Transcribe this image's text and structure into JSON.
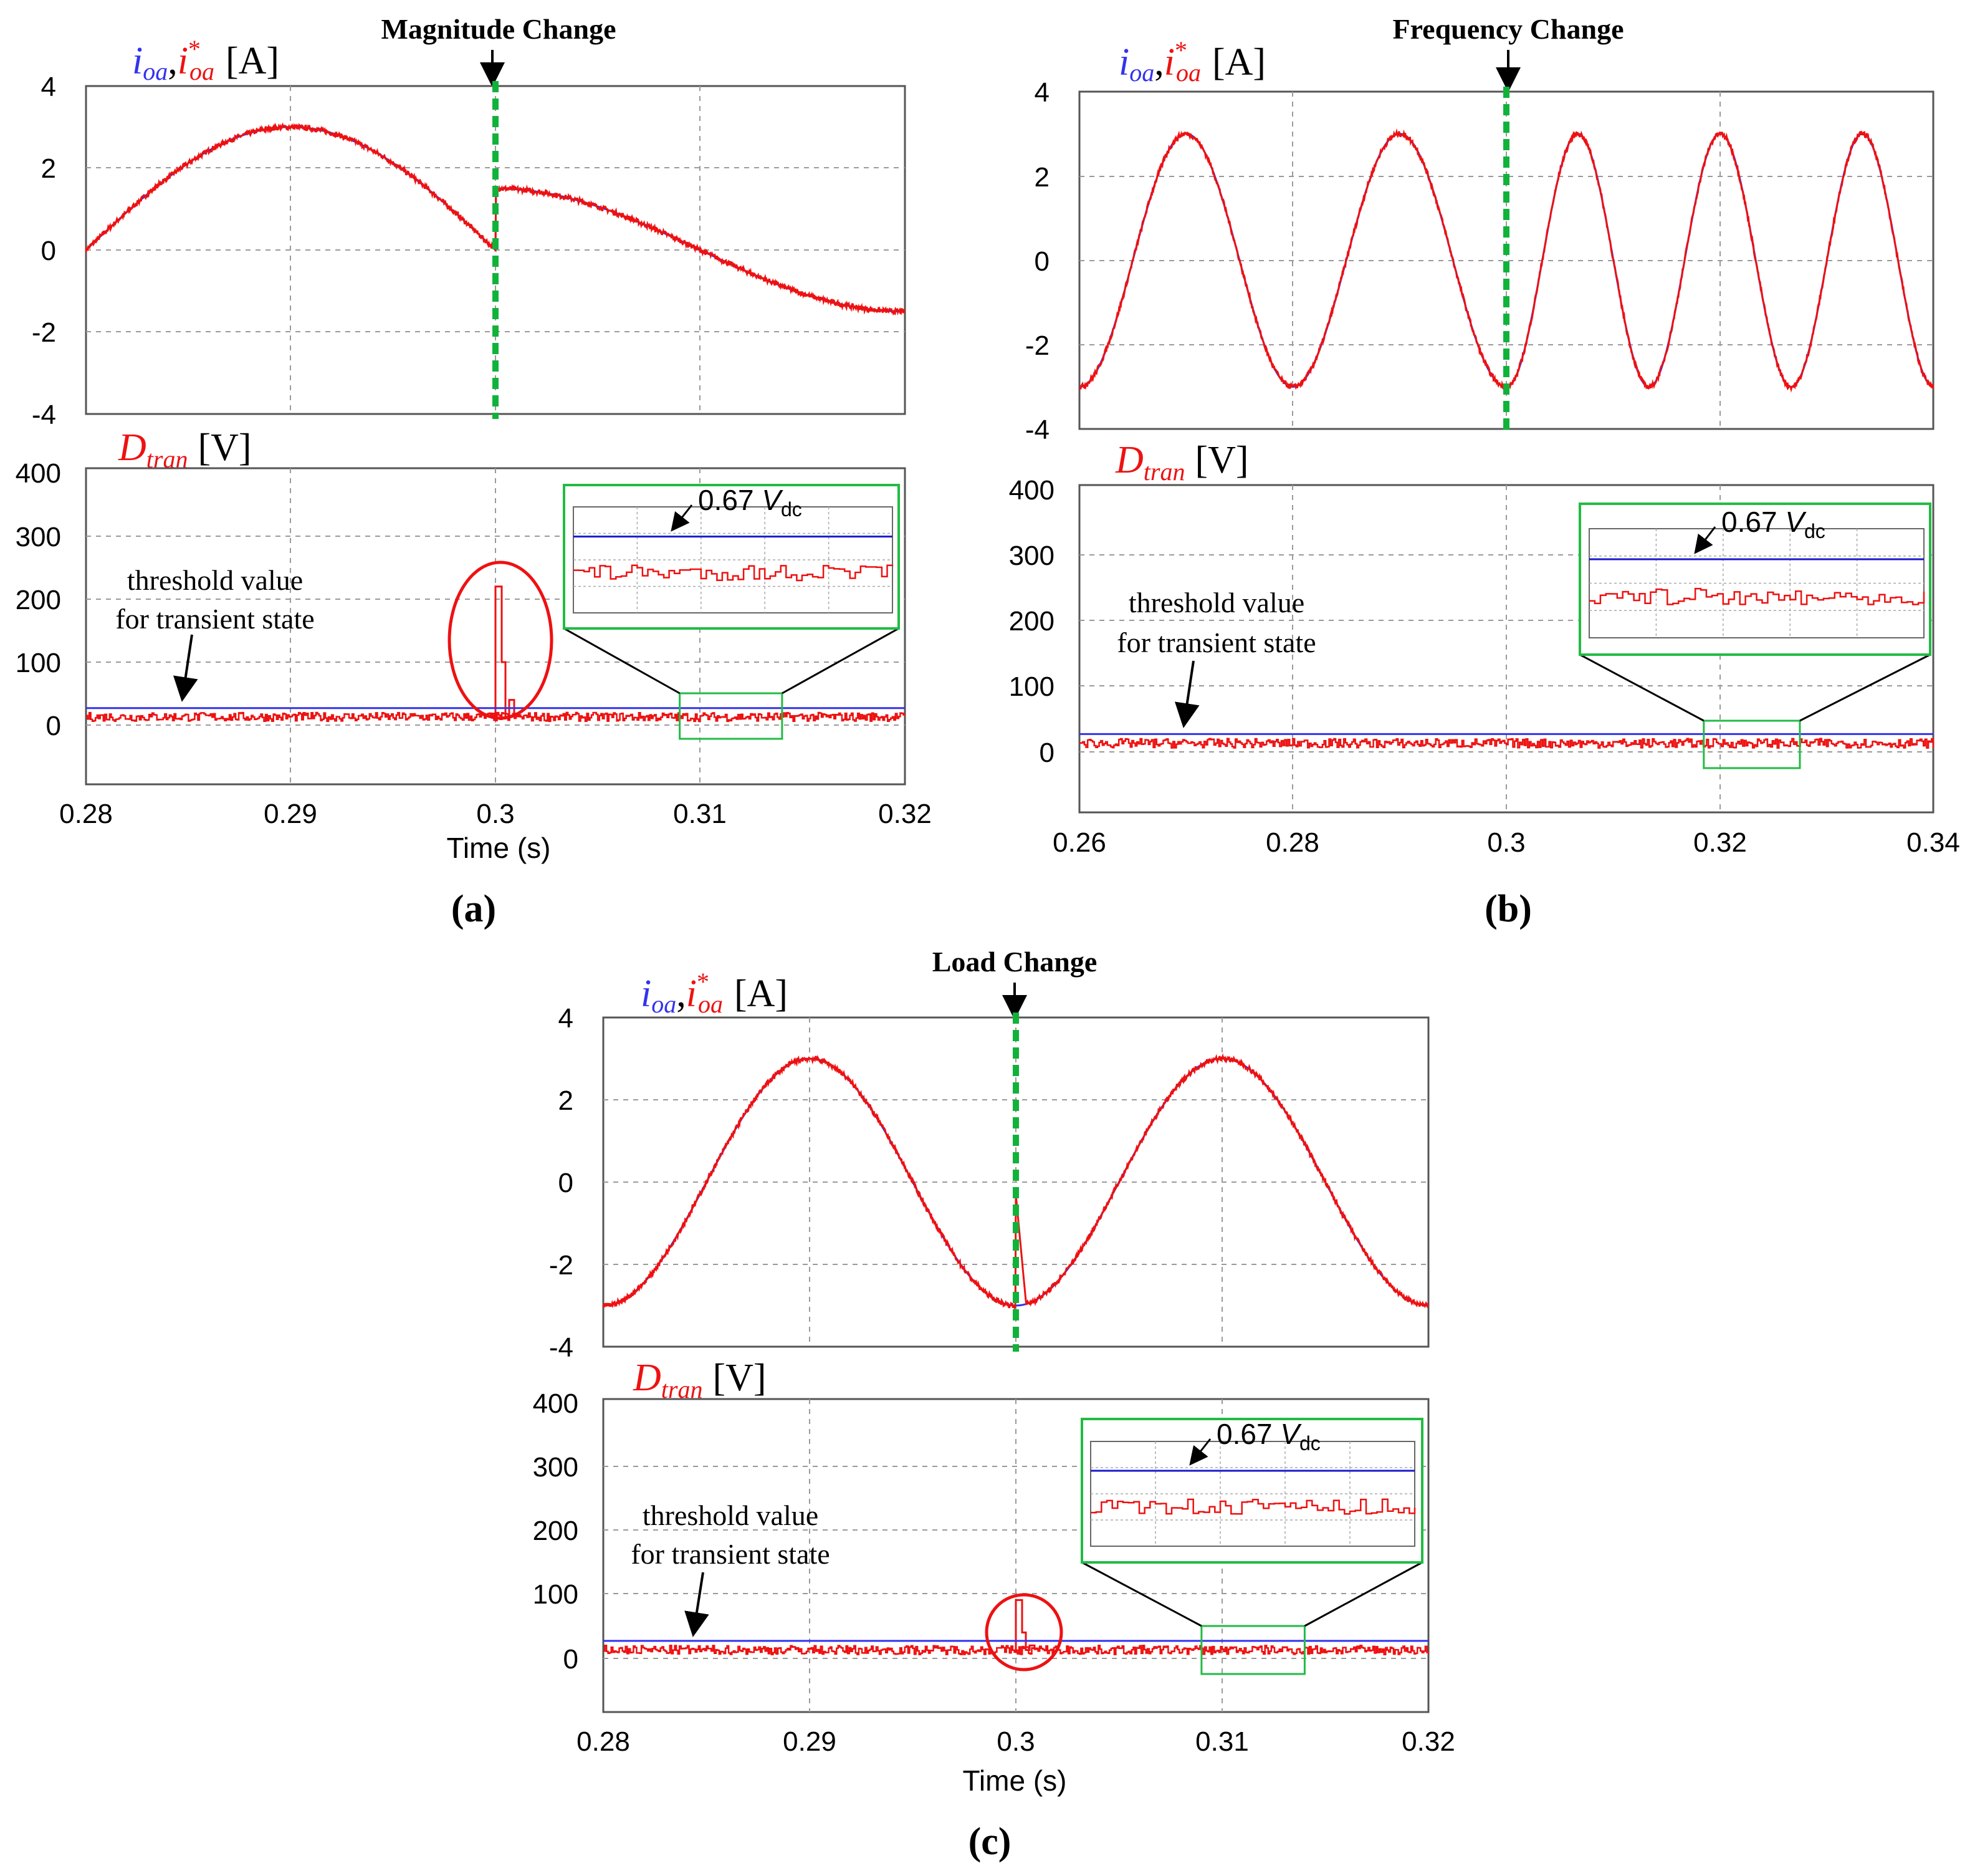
{
  "colors": {
    "measured": "#3333ee",
    "reference": "#ee1111",
    "marker": "#11b23a",
    "grid": "#9a9a9a",
    "frame": "#555555",
    "zoom_box": "#22bb44",
    "circle": "#ee1111"
  },
  "panels": [
    {
      "label": "(a)",
      "event": "Magnitude Change",
      "current_label": {
        "sym1": "i",
        "sub1": "oa",
        "sep": ",",
        "sym2": "i",
        "sub2": "oa",
        "sup2": "*",
        "unit": "[A]"
      },
      "dtran_label": {
        "sym": "D",
        "sub": "tran",
        "unit": "[V]"
      },
      "annotation": {
        "line1": "threshold value",
        "line2": "for transient state"
      },
      "inset_label": {
        "text": "0.67 ",
        "sym": "V",
        "sub": "dc"
      },
      "xlabel": "Time (s)",
      "xticks": [
        "0.28",
        "0.29",
        "0.3",
        "0.31",
        "0.32"
      ],
      "yticks_current": [
        "4",
        "2",
        "0",
        "-2",
        "-4"
      ],
      "yticks_dtran": [
        "400",
        "300",
        "200",
        "100",
        "0"
      ]
    },
    {
      "label": "(b)",
      "event": "Frequency Change",
      "current_label": {
        "sym1": "i",
        "sub1": "oa",
        "sep": ",",
        "sym2": "i",
        "sub2": "oa",
        "sup2": "*",
        "unit": "[A]"
      },
      "dtran_label": {
        "sym": "D",
        "sub": "tran",
        "unit": "[V]"
      },
      "annotation": {
        "line1": "threshold value",
        "line2": "for transient state"
      },
      "inset_label": {
        "text": "0.67 ",
        "sym": "V",
        "sub": "dc"
      },
      "xlabel": "",
      "xticks": [
        "0.26",
        "0.28",
        "0.3",
        "0.32",
        "0.34"
      ],
      "yticks_current": [
        "4",
        "2",
        "0",
        "-2",
        "-4"
      ],
      "yticks_dtran": [
        "400",
        "300",
        "200",
        "100",
        "0"
      ]
    },
    {
      "label": "(c)",
      "event": "Load Change",
      "current_label": {
        "sym1": "i",
        "sub1": "oa",
        "sep": ",",
        "sym2": "i",
        "sub2": "oa",
        "sup2": "*",
        "unit": "[A]"
      },
      "dtran_label": {
        "sym": "D",
        "sub": "tran",
        "unit": "[V]"
      },
      "annotation": {
        "line1": "threshold value",
        "line2": "for transient state"
      },
      "inset_label": {
        "text": "0.67 ",
        "sym": "V",
        "sub": "dc"
      },
      "xlabel": "Time (s)",
      "xticks": [
        "0.28",
        "0.29",
        "0.3",
        "0.31",
        "0.32"
      ],
      "yticks_current": [
        "4",
        "2",
        "0",
        "-2",
        "-4"
      ],
      "yticks_dtran": [
        "400",
        "300",
        "200",
        "100",
        "0"
      ]
    }
  ],
  "chart_data": [
    {
      "type": "line",
      "panel": "(a)",
      "title": "Magnitude Change",
      "subplots": [
        {
          "ylabel": "i_oa, i*_oa [A]",
          "xlim": [
            0.28,
            0.32
          ],
          "ylim": [
            -4,
            4
          ],
          "grid": true,
          "series": [
            {
              "name": "i_oa",
              "color": "blue",
              "model": "sine",
              "segments": [
                {
                  "t0": 0.28,
                  "t1": 0.3,
                  "amp": 3.0,
                  "freq": 25,
                  "center": 0.29
                },
                {
                  "t0": 0.3,
                  "t1": 0.32,
                  "amp": 1.5,
                  "freq": 25,
                  "center": 0.3
                }
              ]
            },
            {
              "name": "i*_oa",
              "color": "red",
              "model": "sine",
              "segments": [
                {
                  "t0": 0.28,
                  "t1": 0.3,
                  "amp": 3.0,
                  "freq": 25,
                  "center": 0.29
                },
                {
                  "t0": 0.3,
                  "t1": 0.32,
                  "amp": 1.5,
                  "freq": 25,
                  "center": 0.3
                }
              ]
            }
          ],
          "event_time": 0.3
        },
        {
          "ylabel": "D_tran [V]",
          "xlim": [
            0.28,
            0.32
          ],
          "ylim": [
            -100,
            400
          ],
          "grid": true,
          "threshold": 27,
          "baseline": 13,
          "spike": {
            "t": 0.3,
            "peaks": [
              220,
              100,
              40
            ]
          },
          "zoom_window": [
            0.309,
            0.314
          ],
          "vdc_ref_label": "0.67 V_dc"
        }
      ]
    },
    {
      "type": "line",
      "panel": "(b)",
      "title": "Frequency Change",
      "subplots": [
        {
          "ylabel": "i_oa, i*_oa [A]",
          "xlim": [
            0.26,
            0.34
          ],
          "ylim": [
            -4,
            4
          ],
          "grid": true,
          "series": [
            {
              "name": "i_oa",
              "color": "blue",
              "model": "sine",
              "segments": [
                {
                  "t0": 0.26,
                  "t1": 0.3,
                  "amp": 3.0,
                  "freq": 50,
                  "center": 0.27
                },
                {
                  "t0": 0.3,
                  "t1": 0.34,
                  "amp": 3.0,
                  "freq": 75,
                  "center": 0.3067
                }
              ]
            },
            {
              "name": "i*_oa",
              "color": "red",
              "model": "sine",
              "segments": [
                {
                  "t0": 0.26,
                  "t1": 0.3,
                  "amp": 3.0,
                  "freq": 50,
                  "center": 0.27
                },
                {
                  "t0": 0.3,
                  "t1": 0.34,
                  "amp": 3.0,
                  "freq": 75,
                  "center": 0.3067
                }
              ]
            }
          ],
          "event_time": 0.3
        },
        {
          "ylabel": "D_tran [V]",
          "xlim": [
            0.26,
            0.34
          ],
          "ylim": [
            -100,
            400
          ],
          "grid": true,
          "threshold": 27,
          "baseline": 13,
          "spike": null,
          "zoom_window": [
            0.3185,
            0.3275
          ],
          "vdc_ref_label": "0.67 V_dc"
        }
      ]
    },
    {
      "type": "line",
      "panel": "(c)",
      "title": "Load Change",
      "subplots": [
        {
          "ylabel": "i_oa, i*_oa [A]",
          "xlim": [
            0.28,
            0.32
          ],
          "ylim": [
            -4,
            4
          ],
          "grid": true,
          "series": [
            {
              "name": "i_oa",
              "color": "blue",
              "model": "sine",
              "segments": [
                {
                  "t0": 0.28,
                  "t1": 0.32,
                  "amp": 3.0,
                  "freq": 50,
                  "center": 0.29
                }
              ]
            },
            {
              "name": "i*_oa",
              "color": "red",
              "model": "sine",
              "segments": [
                {
                  "t0": 0.28,
                  "t1": 0.32,
                  "amp": 3.0,
                  "freq": 50,
                  "center": 0.29
                }
              ],
              "transient": {
                "t": 0.3,
                "jump_to": -0.3,
                "settle": 0.0005
              }
            }
          ],
          "event_time": 0.3
        },
        {
          "ylabel": "D_tran [V]",
          "xlim": [
            0.28,
            0.32
          ],
          "ylim": [
            -100,
            400
          ],
          "grid": true,
          "threshold": 27,
          "baseline": 13,
          "spike": {
            "t": 0.3,
            "peaks": [
              90,
              40,
              20
            ]
          },
          "zoom_window": [
            0.309,
            0.314
          ],
          "vdc_ref_label": "0.67 V_dc"
        }
      ]
    }
  ]
}
